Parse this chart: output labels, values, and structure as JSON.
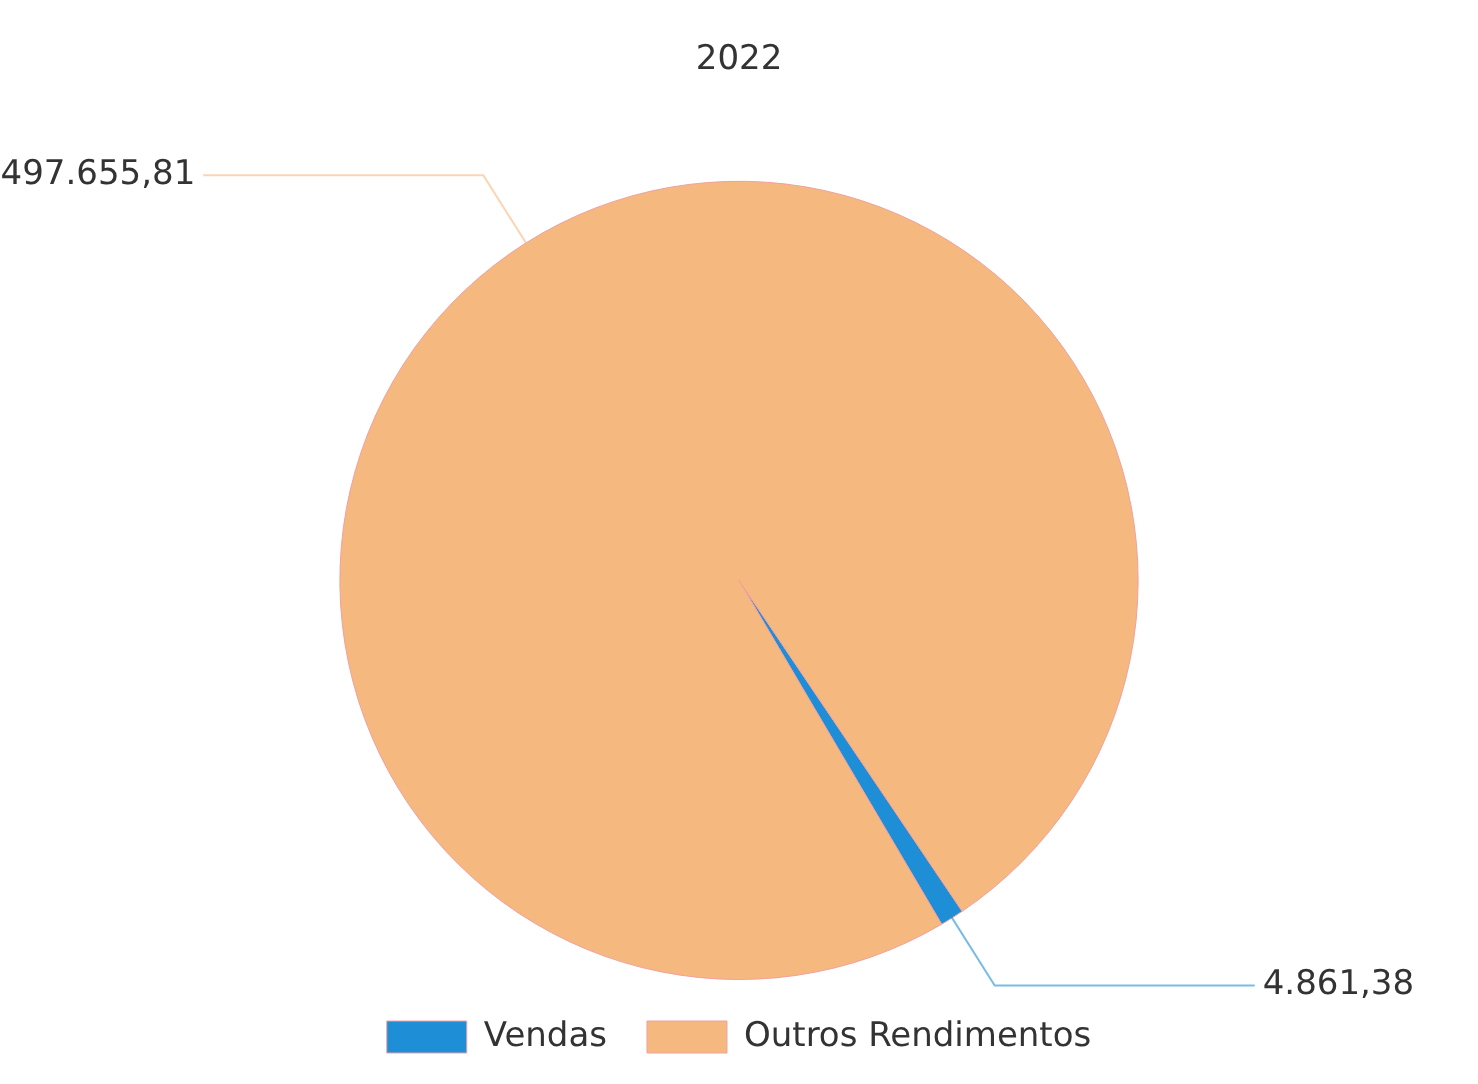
{
  "chart_data": {
    "type": "pie",
    "title": "2022",
    "categories": [
      "Vendas",
      "Outros Rendimentos"
    ],
    "values": [
      4861.38,
      497655.81
    ],
    "colors": [
      "#1e8fd6",
      "#f5b97f"
    ],
    "value_labels": [
      "4.861,38",
      "497.655,81"
    ],
    "legend": "bottom"
  }
}
